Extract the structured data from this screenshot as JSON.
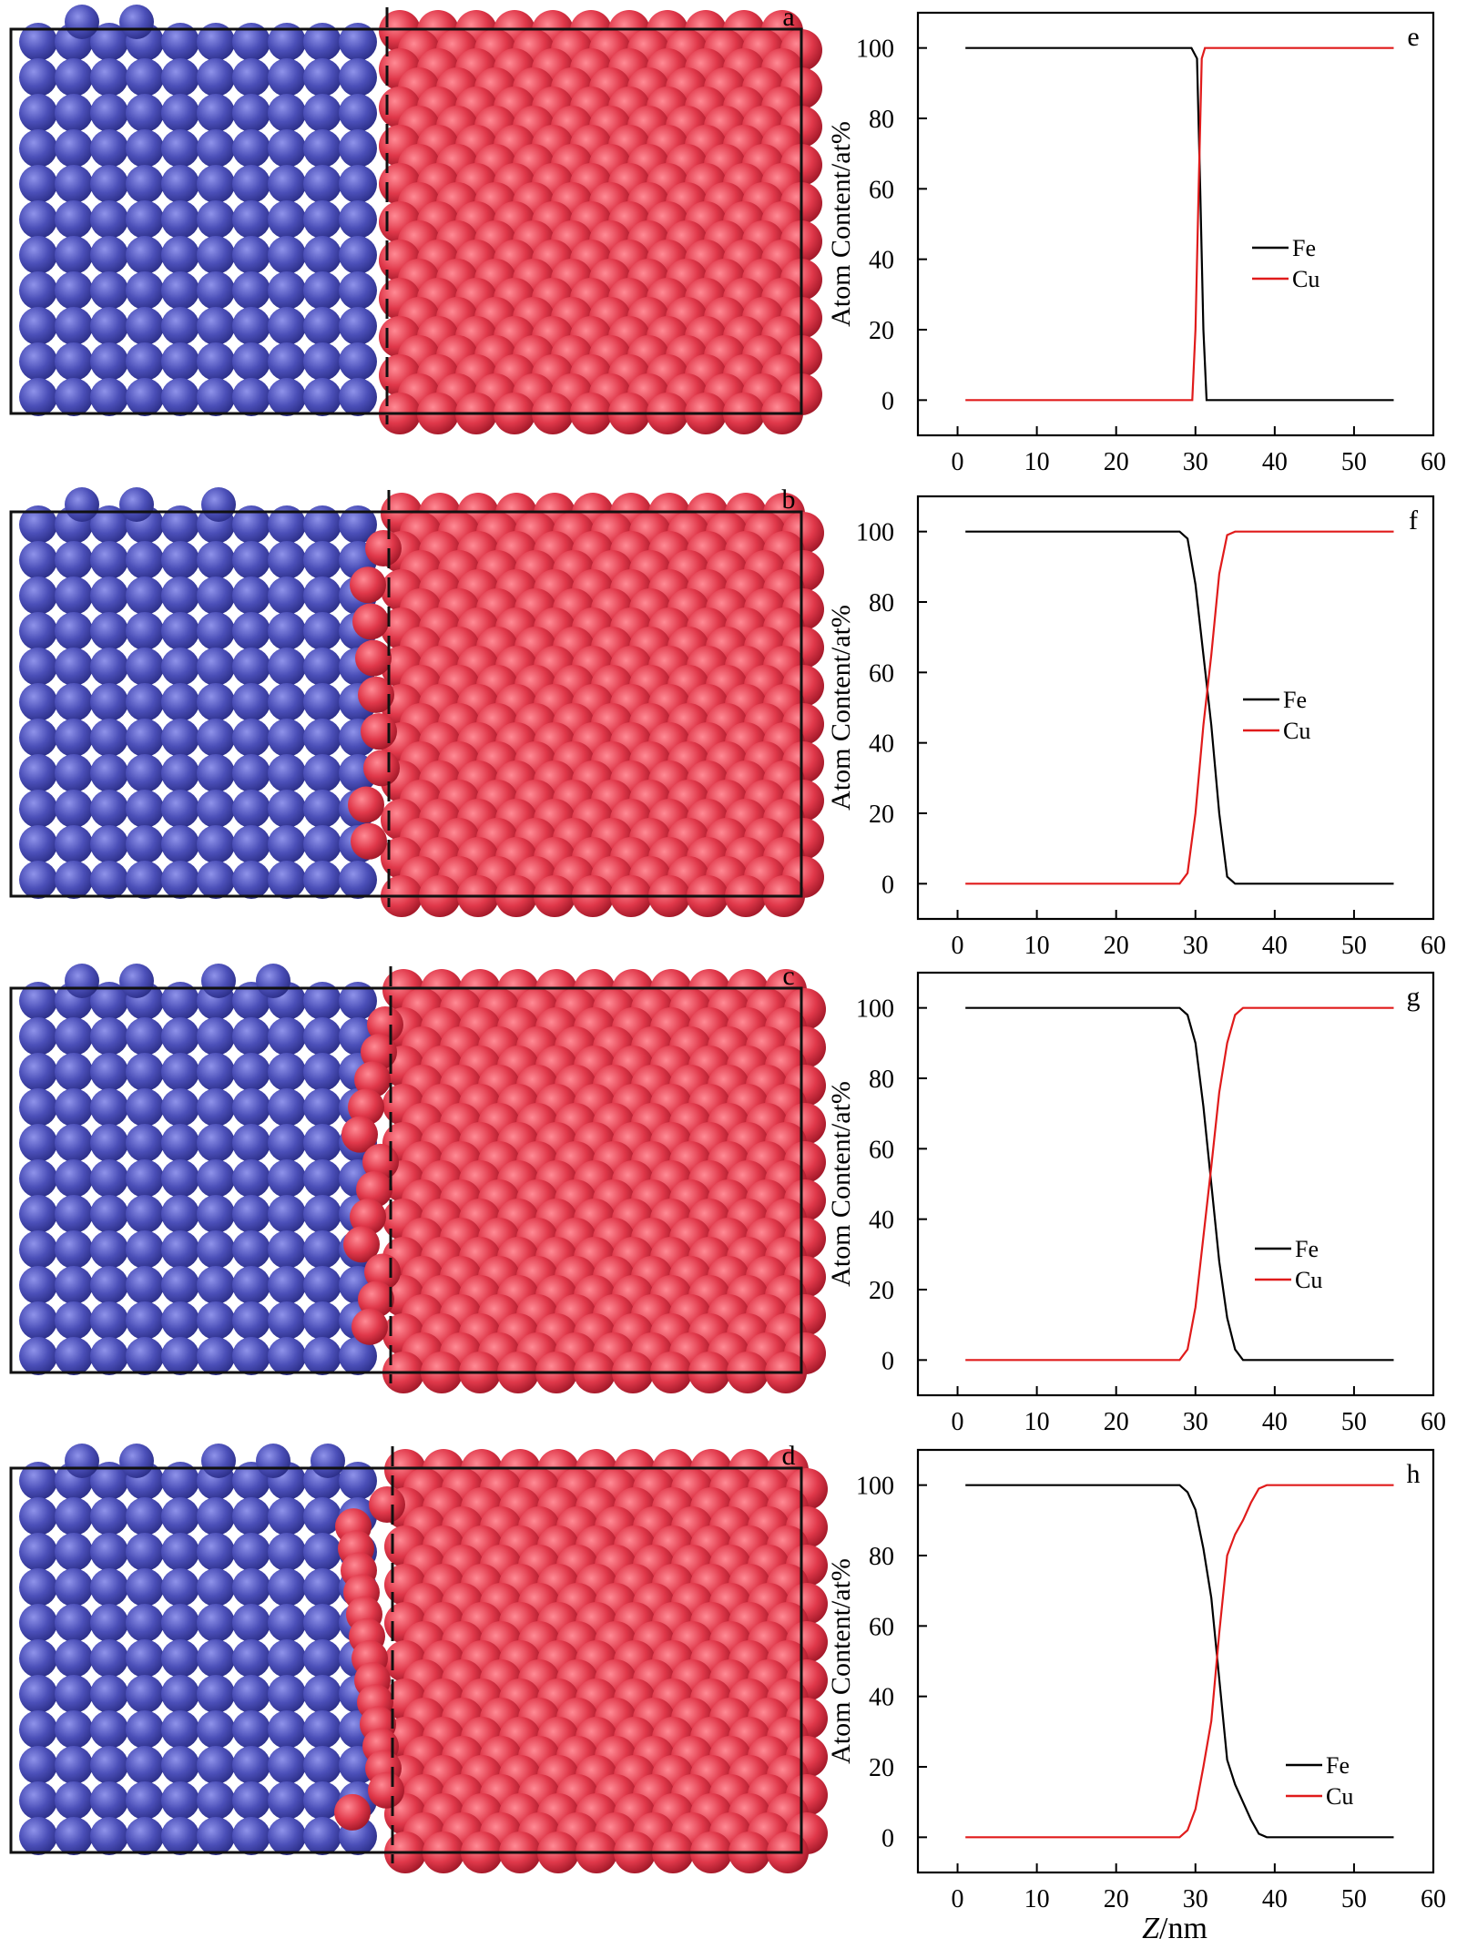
{
  "figure": {
    "xaxis_shared_label_italic": "Z",
    "xaxis_shared_label_unit": "/nm"
  },
  "colors": {
    "fe_atom": "#4b4fb8",
    "cu_atom": "#e0384a",
    "fe_line": "#000000",
    "cu_line": "#e01b1b"
  },
  "atom_panels": [
    {
      "label": "a",
      "interface_roughness": 0
    },
    {
      "label": "b",
      "interface_roughness": 1
    },
    {
      "label": "c",
      "interface_roughness": 2
    },
    {
      "label": "d",
      "interface_roughness": 3
    }
  ],
  "chart_data": [
    {
      "type": "line",
      "panel_label": "e",
      "xlabel": "",
      "ylabel": "Atom Content/at%",
      "xlim": [
        -5,
        60
      ],
      "ylim": [
        -10,
        110
      ],
      "xticks": [
        0,
        10,
        20,
        30,
        40,
        50,
        60
      ],
      "yticks": [
        0,
        20,
        40,
        60,
        80,
        100
      ],
      "legend": [
        "Fe",
        "Cu"
      ],
      "series": [
        {
          "name": "Fe",
          "x": [
            1,
            10,
            20,
            29.5,
            30.2,
            30.6,
            31.0,
            31.4,
            55
          ],
          "y": [
            100,
            100,
            100,
            100,
            97,
            60,
            20,
            0,
            0
          ]
        },
        {
          "name": "Cu",
          "x": [
            1,
            10,
            20,
            29.6,
            30.0,
            30.4,
            30.8,
            31.2,
            55
          ],
          "y": [
            0,
            0,
            0,
            0,
            20,
            60,
            97,
            100,
            100
          ]
        }
      ]
    },
    {
      "type": "line",
      "panel_label": "f",
      "xlabel": "",
      "ylabel": "Atom Content/at%",
      "xlim": [
        -5,
        60
      ],
      "ylim": [
        -10,
        110
      ],
      "xticks": [
        0,
        10,
        20,
        30,
        40,
        50,
        60
      ],
      "yticks": [
        0,
        20,
        40,
        60,
        80,
        100
      ],
      "legend": [
        "Fe",
        "Cu"
      ],
      "series": [
        {
          "name": "Fe",
          "x": [
            1,
            10,
            20,
            28,
            29,
            30,
            31,
            32,
            33,
            34,
            35,
            55
          ],
          "y": [
            100,
            100,
            100,
            100,
            98,
            85,
            65,
            45,
            20,
            2,
            0,
            0
          ]
        },
        {
          "name": "Cu",
          "x": [
            1,
            10,
            20,
            28,
            29,
            30,
            31,
            32,
            33,
            34,
            35,
            55
          ],
          "y": [
            0,
            0,
            0,
            0,
            3,
            20,
            45,
            65,
            88,
            99,
            100,
            100
          ]
        }
      ]
    },
    {
      "type": "line",
      "panel_label": "g",
      "xlabel": "",
      "ylabel": "Atom Content/at%",
      "xlim": [
        -5,
        60
      ],
      "ylim": [
        -10,
        110
      ],
      "xticks": [
        0,
        10,
        20,
        30,
        40,
        50,
        60
      ],
      "yticks": [
        0,
        20,
        40,
        60,
        80,
        100
      ],
      "legend": [
        "Fe",
        "Cu"
      ],
      "series": [
        {
          "name": "Fe",
          "x": [
            1,
            10,
            20,
            28,
            29,
            30,
            31,
            32,
            33,
            34,
            35,
            36,
            55
          ],
          "y": [
            100,
            100,
            100,
            100,
            98,
            90,
            72,
            50,
            28,
            12,
            3,
            0,
            0
          ]
        },
        {
          "name": "Cu",
          "x": [
            1,
            10,
            20,
            28,
            29,
            30,
            31,
            32,
            33,
            34,
            35,
            36,
            55
          ],
          "y": [
            0,
            0,
            0,
            0,
            3,
            15,
            35,
            55,
            76,
            90,
            98,
            100,
            100
          ]
        }
      ]
    },
    {
      "type": "line",
      "panel_label": "h",
      "xlabel": "",
      "ylabel": "Atom Content/at%",
      "xlim": [
        -5,
        60
      ],
      "ylim": [
        -10,
        110
      ],
      "xticks": [
        0,
        10,
        20,
        30,
        40,
        50,
        60
      ],
      "yticks": [
        0,
        20,
        40,
        60,
        80,
        100
      ],
      "legend": [
        "Fe",
        "Cu"
      ],
      "series": [
        {
          "name": "Fe",
          "x": [
            1,
            10,
            20,
            28,
            29,
            30,
            31,
            32,
            33,
            34,
            35,
            36,
            37,
            38,
            39,
            55
          ],
          "y": [
            100,
            100,
            100,
            100,
            98,
            93,
            82,
            68,
            45,
            22,
            15,
            10,
            5,
            1,
            0,
            0
          ]
        },
        {
          "name": "Cu",
          "x": [
            1,
            10,
            20,
            28,
            29,
            30,
            31,
            32,
            33,
            34,
            35,
            36,
            37,
            38,
            39,
            55
          ],
          "y": [
            0,
            0,
            0,
            0,
            2,
            8,
            20,
            33,
            58,
            80,
            86,
            90,
            95,
            99,
            100,
            100
          ]
        }
      ]
    }
  ]
}
